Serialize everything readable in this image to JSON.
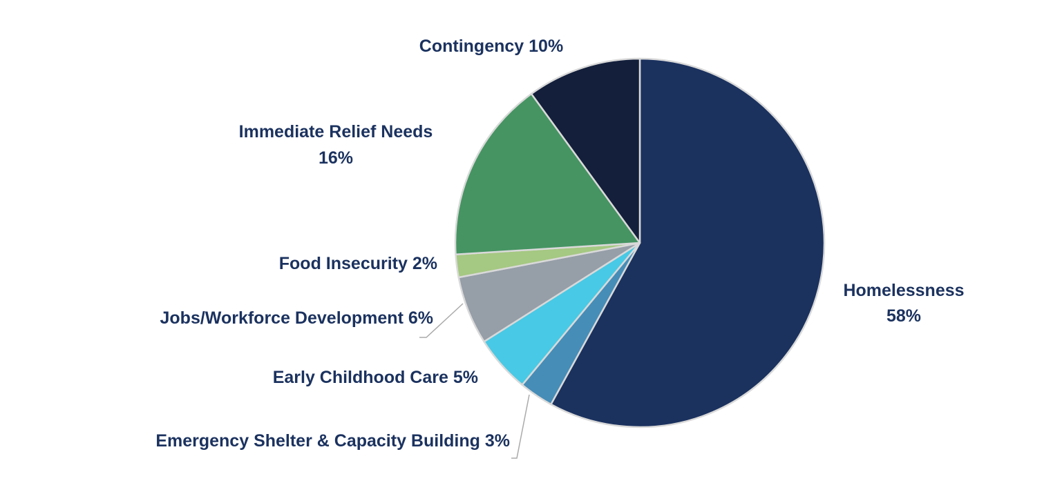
{
  "chart_data": {
    "type": "pie",
    "start": "12 o'clock, clockwise",
    "legend": "none",
    "slices": [
      {
        "label": "Homelessness",
        "value": 58,
        "value_label": "58%",
        "color": "#1b325f"
      },
      {
        "label": "Emergency Shelter & Capacity Building",
        "value": 3,
        "value_label": "3%",
        "color": "#468db8"
      },
      {
        "label": "Early Childhood Care",
        "value": 5,
        "value_label": "5%",
        "color": "#48c9e5"
      },
      {
        "label": "Jobs/Workforce Development",
        "value": 6,
        "value_label": "6%",
        "color": "#969ea8"
      },
      {
        "label": "Food Insecurity",
        "value": 2,
        "value_label": "2%",
        "color": "#a5c882"
      },
      {
        "label": "Immediate Relief Needs",
        "value": 16,
        "value_label": "16%",
        "color": "#459462"
      },
      {
        "label": "Contingency",
        "value": 10,
        "value_label": "10%",
        "color": "#131f3b"
      }
    ]
  }
}
